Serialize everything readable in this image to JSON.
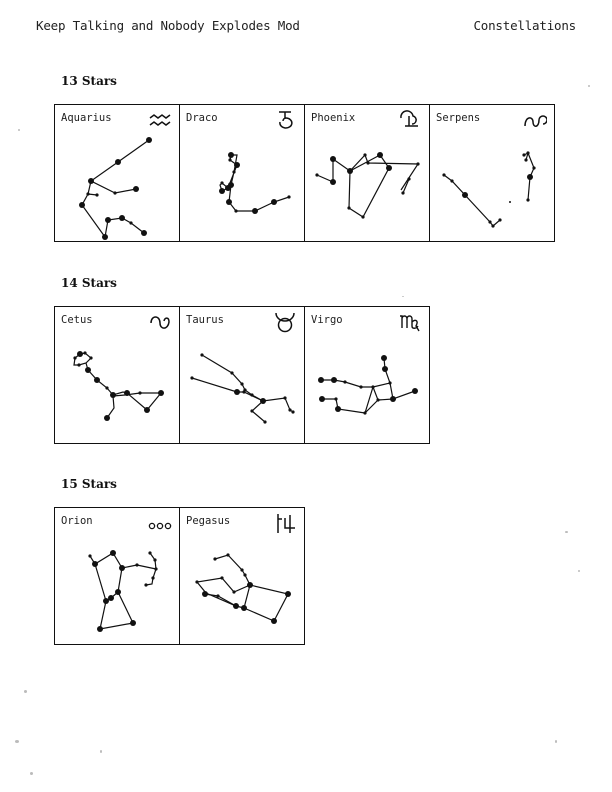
{
  "header": {
    "left": "Keep Talking and Nobody Explodes Mod",
    "right": "Constellations"
  },
  "sections": [
    {
      "title": "13 Stars",
      "items": [
        {
          "name": "Aquarius",
          "symbol_icon": "aquarius-symbol-icon"
        },
        {
          "name": "Draco",
          "symbol_icon": "draco-symbol-icon"
        },
        {
          "name": "Phoenix",
          "symbol_icon": "phoenix-symbol-icon"
        },
        {
          "name": "Serpens",
          "symbol_icon": "serpens-symbol-icon"
        }
      ]
    },
    {
      "title": "14 Stars",
      "items": [
        {
          "name": "Cetus",
          "symbol_icon": "cetus-symbol-icon"
        },
        {
          "name": "Taurus",
          "symbol_icon": "taurus-symbol-icon"
        },
        {
          "name": "Virgo",
          "symbol_icon": "virgo-symbol-icon"
        }
      ]
    },
    {
      "title": "15 Stars",
      "items": [
        {
          "name": "Orion",
          "symbol_icon": "orion-symbol-icon"
        },
        {
          "name": "Pegasus",
          "symbol_icon": "pegasus-symbol-icon"
        }
      ]
    }
  ]
}
